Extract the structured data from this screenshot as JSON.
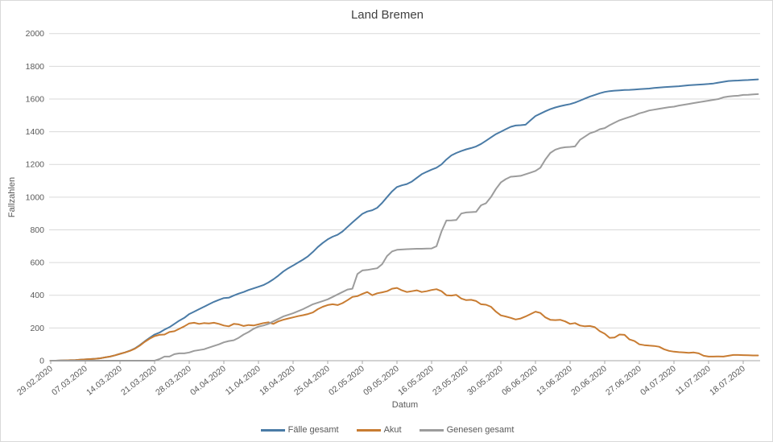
{
  "window": {
    "background": "#ffffff",
    "border_color": "#d9d9d9"
  },
  "text_colors": {
    "title": "#404040",
    "axis_labels": "#595959",
    "tick_labels": "#595959"
  },
  "axis_style": {
    "gridline_color": "#d9d9d9",
    "axis_line_color": "#a6a6a6",
    "tick_mark_color": "#a6a6a6"
  },
  "chart_data": {
    "type": "line",
    "title": "Land Bremen",
    "xlabel": "Datum",
    "ylabel": "Fallzahlen",
    "ylim": [
      0,
      2000
    ],
    "grid": "horizontal",
    "legend_position": "bottom",
    "x_unit": "daily values, day 0 = 29.02.2020, last day = 143 (21.07.2020)",
    "x_tick_every_days": 7,
    "x_tick_labels": [
      "29.02.2020",
      "07.03.2020",
      "14.03.2020",
      "21.03.2020",
      "28.03.2020",
      "04.04.2020",
      "11.04.2020",
      "18.04.2020",
      "25.04.2020",
      "02.05.2020",
      "09.05.2020",
      "16.05.2020",
      "23.05.2020",
      "30.05.2020",
      "06.06.2020",
      "13.06.2020",
      "20.06.2020",
      "27.06.2020",
      "04.07.2020",
      "11.07.2020",
      "18.07.2020"
    ],
    "y_ticks": [
      0,
      200,
      400,
      600,
      800,
      1000,
      1200,
      1400,
      1600,
      1800,
      2000
    ],
    "series": [
      {
        "name": "Fälle gesamt",
        "color": "#4a7ba6",
        "values": [
          0,
          0,
          1,
          2,
          3,
          4,
          6,
          8,
          10,
          12,
          15,
          20,
          25,
          33,
          42,
          50,
          61,
          75,
          95,
          118,
          140,
          160,
          172,
          190,
          205,
          225,
          245,
          262,
          285,
          300,
          315,
          330,
          345,
          360,
          372,
          383,
          385,
          398,
          410,
          420,
          432,
          442,
          452,
          462,
          478,
          497,
          520,
          545,
          565,
          582,
          600,
          618,
          638,
          665,
          695,
          720,
          742,
          758,
          770,
          790,
          818,
          845,
          872,
          898,
          912,
          920,
          935,
          965,
          1000,
          1035,
          1062,
          1072,
          1080,
          1095,
          1118,
          1140,
          1155,
          1168,
          1180,
          1200,
          1230,
          1255,
          1270,
          1282,
          1292,
          1300,
          1310,
          1325,
          1345,
          1365,
          1385,
          1400,
          1415,
          1430,
          1438,
          1440,
          1443,
          1470,
          1496,
          1510,
          1525,
          1538,
          1548,
          1556,
          1563,
          1569,
          1578,
          1590,
          1603,
          1615,
          1625,
          1635,
          1643,
          1648,
          1651,
          1653,
          1655,
          1656,
          1658,
          1660,
          1662,
          1664,
          1667,
          1670,
          1672,
          1674,
          1676,
          1678,
          1681,
          1684,
          1686,
          1688,
          1690,
          1692,
          1695,
          1700,
          1705,
          1710,
          1712,
          1713,
          1715,
          1716,
          1718,
          1720
        ]
      },
      {
        "name": "Akut",
        "color": "#c87c32",
        "values": [
          0,
          0,
          1,
          2,
          3,
          4,
          6,
          8,
          10,
          12,
          15,
          20,
          25,
          33,
          42,
          50,
          60,
          73,
          92,
          115,
          135,
          150,
          158,
          160,
          175,
          180,
          195,
          210,
          228,
          232,
          225,
          230,
          228,
          232,
          225,
          215,
          210,
          225,
          222,
          212,
          218,
          215,
          222,
          230,
          235,
          225,
          240,
          250,
          258,
          265,
          272,
          278,
          285,
          295,
          315,
          330,
          340,
          345,
          340,
          352,
          370,
          390,
          395,
          408,
          420,
          400,
          412,
          418,
          425,
          440,
          445,
          430,
          420,
          425,
          430,
          420,
          425,
          432,
          437,
          425,
          400,
          398,
          402,
          380,
          370,
          372,
          365,
          345,
          342,
          330,
          300,
          277,
          270,
          262,
          252,
          258,
          270,
          285,
          300,
          292,
          265,
          250,
          248,
          250,
          240,
          225,
          230,
          215,
          210,
          212,
          205,
          180,
          165,
          140,
          142,
          160,
          158,
          130,
          120,
          100,
          95,
          92,
          90,
          85,
          70,
          60,
          55,
          52,
          50,
          48,
          50,
          45,
          30,
          25,
          25,
          26,
          25,
          30,
          35,
          35,
          34,
          33,
          32,
          32
        ]
      },
      {
        "name": "Genesen gesamt",
        "color": "#9c9c9c",
        "values": [
          0,
          0,
          0,
          0,
          0,
          0,
          0,
          0,
          0,
          0,
          0,
          0,
          0,
          0,
          0,
          0,
          0,
          0,
          0,
          0,
          0,
          0,
          10,
          25,
          25,
          40,
          45,
          45,
          50,
          60,
          65,
          70,
          80,
          90,
          100,
          112,
          120,
          125,
          140,
          160,
          175,
          195,
          208,
          215,
          225,
          240,
          255,
          270,
          280,
          290,
          302,
          315,
          330,
          345,
          355,
          365,
          375,
          390,
          405,
          420,
          435,
          440,
          530,
          552,
          555,
          560,
          565,
          590,
          640,
          668,
          678,
          680,
          682,
          683,
          684,
          684,
          685,
          686,
          700,
          790,
          857,
          858,
          860,
          900,
          906,
          908,
          910,
          950,
          963,
          1000,
          1050,
          1090,
          1110,
          1125,
          1127,
          1130,
          1140,
          1150,
          1160,
          1180,
          1230,
          1270,
          1290,
          1300,
          1305,
          1307,
          1310,
          1350,
          1370,
          1390,
          1400,
          1415,
          1422,
          1440,
          1455,
          1470,
          1480,
          1490,
          1500,
          1512,
          1520,
          1530,
          1535,
          1540,
          1545,
          1550,
          1553,
          1560,
          1565,
          1570,
          1575,
          1580,
          1585,
          1590,
          1595,
          1600,
          1610,
          1615,
          1618,
          1620,
          1625,
          1626,
          1628,
          1630
        ]
      }
    ]
  }
}
